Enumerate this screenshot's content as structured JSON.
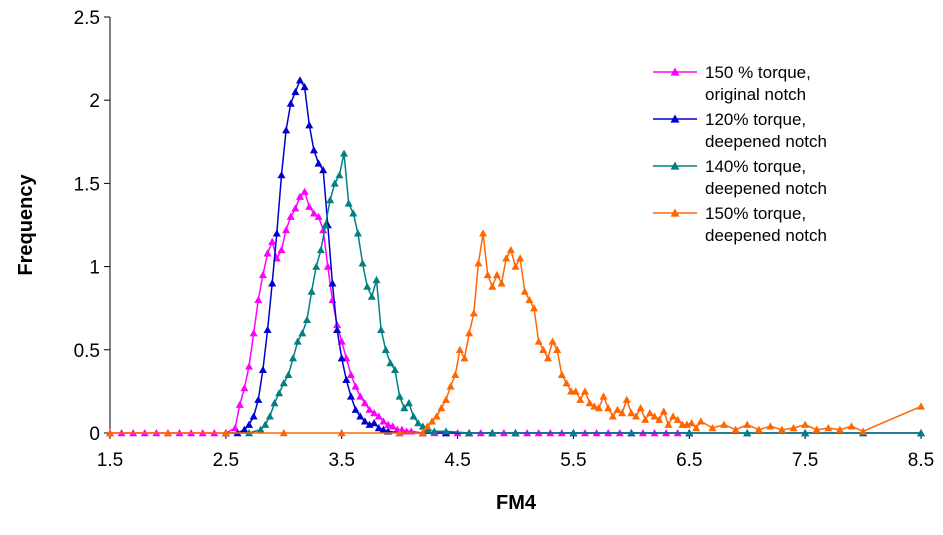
{
  "chart_data": {
    "type": "line",
    "xlabel": "FM4",
    "ylabel": "Frequency",
    "xlim": [
      1.5,
      8.5
    ],
    "ylim": [
      0,
      2.5
    ],
    "x_ticks": [
      "1.5",
      "2.5",
      "3.5",
      "4.5",
      "5.5",
      "6.5",
      "7.5",
      "8.5"
    ],
    "y_ticks": [
      "0",
      "0.5",
      "1",
      "1.5",
      "2",
      "2.5"
    ],
    "grid": false,
    "legend_position": "top-right",
    "series": [
      {
        "name_lines": [
          "150 % torque,",
          "original notch"
        ],
        "color": "#FF00FF",
        "points": [
          [
            1.5,
            0
          ],
          [
            1.6,
            0
          ],
          [
            1.7,
            0
          ],
          [
            1.8,
            0
          ],
          [
            1.9,
            0
          ],
          [
            2.0,
            0
          ],
          [
            2.1,
            0
          ],
          [
            2.2,
            0
          ],
          [
            2.3,
            0
          ],
          [
            2.4,
            0
          ],
          [
            2.5,
            0
          ],
          [
            2.58,
            0.03
          ],
          [
            2.62,
            0.17
          ],
          [
            2.66,
            0.27
          ],
          [
            2.7,
            0.4
          ],
          [
            2.74,
            0.6
          ],
          [
            2.78,
            0.8
          ],
          [
            2.82,
            0.95
          ],
          [
            2.86,
            1.08
          ],
          [
            2.9,
            1.15
          ],
          [
            2.94,
            1.05
          ],
          [
            2.98,
            1.1
          ],
          [
            3.02,
            1.22
          ],
          [
            3.06,
            1.3
          ],
          [
            3.1,
            1.35
          ],
          [
            3.14,
            1.42
          ],
          [
            3.18,
            1.45
          ],
          [
            3.22,
            1.36
          ],
          [
            3.26,
            1.32
          ],
          [
            3.3,
            1.3
          ],
          [
            3.34,
            1.22
          ],
          [
            3.38,
            1.0
          ],
          [
            3.42,
            0.8
          ],
          [
            3.46,
            0.65
          ],
          [
            3.5,
            0.55
          ],
          [
            3.54,
            0.45
          ],
          [
            3.58,
            0.35
          ],
          [
            3.62,
            0.28
          ],
          [
            3.66,
            0.22
          ],
          [
            3.7,
            0.18
          ],
          [
            3.74,
            0.14
          ],
          [
            3.78,
            0.12
          ],
          [
            3.82,
            0.1
          ],
          [
            3.86,
            0.07
          ],
          [
            3.9,
            0.05
          ],
          [
            3.94,
            0.04
          ],
          [
            3.98,
            0.02
          ],
          [
            4.02,
            0.02
          ],
          [
            4.06,
            0.01
          ],
          [
            4.1,
            0.01
          ],
          [
            4.2,
            0
          ],
          [
            4.3,
            0
          ],
          [
            4.4,
            0
          ],
          [
            4.5,
            0
          ],
          [
            4.6,
            0
          ],
          [
            4.7,
            0
          ],
          [
            4.8,
            0
          ],
          [
            4.9,
            0
          ],
          [
            5.0,
            0
          ],
          [
            5.1,
            0
          ],
          [
            5.2,
            0
          ],
          [
            5.3,
            0
          ],
          [
            5.4,
            0
          ],
          [
            5.5,
            0
          ],
          [
            5.6,
            0
          ],
          [
            5.7,
            0
          ],
          [
            5.8,
            0
          ],
          [
            5.9,
            0
          ],
          [
            6.0,
            0
          ],
          [
            6.1,
            0
          ],
          [
            6.2,
            0
          ],
          [
            6.3,
            0
          ],
          [
            6.4,
            0
          ],
          [
            6.5,
            0
          ]
        ]
      },
      {
        "name_lines": [
          "120% torque,",
          "deepened notch"
        ],
        "color": "#0000CC",
        "points": [
          [
            2.5,
            0
          ],
          [
            2.6,
            0
          ],
          [
            2.66,
            0.02
          ],
          [
            2.7,
            0.05
          ],
          [
            2.74,
            0.1
          ],
          [
            2.78,
            0.2
          ],
          [
            2.82,
            0.38
          ],
          [
            2.86,
            0.62
          ],
          [
            2.9,
            0.9
          ],
          [
            2.94,
            1.2
          ],
          [
            2.98,
            1.55
          ],
          [
            3.02,
            1.82
          ],
          [
            3.06,
            1.98
          ],
          [
            3.1,
            2.05
          ],
          [
            3.14,
            2.12
          ],
          [
            3.18,
            2.08
          ],
          [
            3.22,
            1.85
          ],
          [
            3.26,
            1.7
          ],
          [
            3.3,
            1.62
          ],
          [
            3.34,
            1.58
          ],
          [
            3.38,
            1.25
          ],
          [
            3.42,
            0.9
          ],
          [
            3.46,
            0.62
          ],
          [
            3.5,
            0.45
          ],
          [
            3.54,
            0.32
          ],
          [
            3.58,
            0.22
          ],
          [
            3.62,
            0.14
          ],
          [
            3.66,
            0.1
          ],
          [
            3.7,
            0.07
          ],
          [
            3.74,
            0.05
          ],
          [
            3.78,
            0.06
          ],
          [
            3.82,
            0.03
          ],
          [
            3.86,
            0.02
          ],
          [
            3.9,
            0.01
          ],
          [
            4.0,
            0
          ],
          [
            4.2,
            0
          ],
          [
            4.4,
            0
          ],
          [
            4.6,
            0
          ],
          [
            4.8,
            0
          ],
          [
            5.0,
            0
          ],
          [
            5.5,
            0
          ],
          [
            6.0,
            0
          ],
          [
            6.5,
            0
          ],
          [
            7.0,
            0
          ],
          [
            7.5,
            0
          ],
          [
            8.0,
            0
          ],
          [
            8.5,
            0
          ]
        ]
      },
      {
        "name_lines": [
          "140% torque,",
          "deepened notch"
        ],
        "color": "#008080",
        "points": [
          [
            2.5,
            0
          ],
          [
            2.7,
            0
          ],
          [
            2.8,
            0.02
          ],
          [
            2.84,
            0.05
          ],
          [
            2.88,
            0.1
          ],
          [
            2.92,
            0.18
          ],
          [
            2.96,
            0.24
          ],
          [
            3.0,
            0.3
          ],
          [
            3.04,
            0.35
          ],
          [
            3.08,
            0.45
          ],
          [
            3.12,
            0.55
          ],
          [
            3.16,
            0.6
          ],
          [
            3.2,
            0.68
          ],
          [
            3.24,
            0.85
          ],
          [
            3.28,
            1.0
          ],
          [
            3.32,
            1.1
          ],
          [
            3.36,
            1.25
          ],
          [
            3.4,
            1.4
          ],
          [
            3.44,
            1.5
          ],
          [
            3.48,
            1.55
          ],
          [
            3.52,
            1.68
          ],
          [
            3.56,
            1.38
          ],
          [
            3.6,
            1.32
          ],
          [
            3.64,
            1.2
          ],
          [
            3.68,
            1.02
          ],
          [
            3.72,
            0.88
          ],
          [
            3.76,
            0.82
          ],
          [
            3.8,
            0.92
          ],
          [
            3.84,
            0.62
          ],
          [
            3.88,
            0.5
          ],
          [
            3.92,
            0.42
          ],
          [
            3.96,
            0.38
          ],
          [
            4.0,
            0.22
          ],
          [
            4.04,
            0.15
          ],
          [
            4.08,
            0.18
          ],
          [
            4.12,
            0.1
          ],
          [
            4.16,
            0.06
          ],
          [
            4.2,
            0.04
          ],
          [
            4.24,
            0.02
          ],
          [
            4.3,
            0.01
          ],
          [
            4.4,
            0.01
          ],
          [
            4.6,
            0
          ],
          [
            4.8,
            0
          ],
          [
            5.0,
            0
          ],
          [
            5.5,
            0
          ],
          [
            6.0,
            0
          ],
          [
            6.5,
            0
          ],
          [
            7.0,
            0
          ],
          [
            7.5,
            0
          ],
          [
            8.0,
            0
          ],
          [
            8.5,
            0
          ]
        ]
      },
      {
        "name_lines": [
          "150%  torque,",
          "deepened notch"
        ],
        "color": "#FF6600",
        "points": [
          [
            1.5,
            0
          ],
          [
            2.0,
            0
          ],
          [
            2.5,
            0
          ],
          [
            3.0,
            0
          ],
          [
            3.5,
            0
          ],
          [
            4.0,
            0
          ],
          [
            4.2,
            0
          ],
          [
            4.24,
            0.04
          ],
          [
            4.28,
            0.07
          ],
          [
            4.32,
            0.1
          ],
          [
            4.36,
            0.15
          ],
          [
            4.4,
            0.2
          ],
          [
            4.44,
            0.28
          ],
          [
            4.48,
            0.35
          ],
          [
            4.52,
            0.5
          ],
          [
            4.56,
            0.45
          ],
          [
            4.6,
            0.6
          ],
          [
            4.64,
            0.72
          ],
          [
            4.68,
            1.02
          ],
          [
            4.72,
            1.2
          ],
          [
            4.76,
            0.95
          ],
          [
            4.8,
            0.88
          ],
          [
            4.84,
            0.95
          ],
          [
            4.88,
            0.9
          ],
          [
            4.92,
            1.05
          ],
          [
            4.96,
            1.1
          ],
          [
            5.0,
            1.0
          ],
          [
            5.04,
            1.05
          ],
          [
            5.08,
            0.85
          ],
          [
            5.12,
            0.8
          ],
          [
            5.16,
            0.75
          ],
          [
            5.2,
            0.55
          ],
          [
            5.24,
            0.5
          ],
          [
            5.28,
            0.45
          ],
          [
            5.32,
            0.55
          ],
          [
            5.36,
            0.5
          ],
          [
            5.4,
            0.35
          ],
          [
            5.44,
            0.3
          ],
          [
            5.48,
            0.25
          ],
          [
            5.52,
            0.25
          ],
          [
            5.56,
            0.2
          ],
          [
            5.6,
            0.25
          ],
          [
            5.64,
            0.18
          ],
          [
            5.68,
            0.16
          ],
          [
            5.72,
            0.15
          ],
          [
            5.76,
            0.22
          ],
          [
            5.8,
            0.15
          ],
          [
            5.84,
            0.1
          ],
          [
            5.88,
            0.14
          ],
          [
            5.92,
            0.12
          ],
          [
            5.96,
            0.2
          ],
          [
            6.0,
            0.12
          ],
          [
            6.04,
            0.1
          ],
          [
            6.08,
            0.15
          ],
          [
            6.12,
            0.08
          ],
          [
            6.16,
            0.12
          ],
          [
            6.2,
            0.1
          ],
          [
            6.24,
            0.08
          ],
          [
            6.28,
            0.13
          ],
          [
            6.32,
            0.05
          ],
          [
            6.36,
            0.1
          ],
          [
            6.4,
            0.08
          ],
          [
            6.44,
            0.05
          ],
          [
            6.48,
            0.05
          ],
          [
            6.52,
            0.06
          ],
          [
            6.56,
            0.03
          ],
          [
            6.6,
            0.07
          ],
          [
            6.7,
            0.03
          ],
          [
            6.8,
            0.05
          ],
          [
            6.9,
            0.02
          ],
          [
            7.0,
            0.05
          ],
          [
            7.1,
            0.02
          ],
          [
            7.2,
            0.04
          ],
          [
            7.3,
            0.02
          ],
          [
            7.4,
            0.03
          ],
          [
            7.5,
            0.05
          ],
          [
            7.6,
            0.02
          ],
          [
            7.7,
            0.03
          ],
          [
            7.8,
            0.02
          ],
          [
            7.9,
            0.04
          ],
          [
            8.0,
            0.01
          ],
          [
            8.5,
            0.16
          ]
        ]
      }
    ]
  }
}
